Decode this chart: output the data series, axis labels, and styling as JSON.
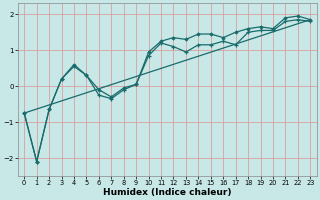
{
  "title": "",
  "xlabel": "Humidex (Indice chaleur)",
  "ylabel": "",
  "background_color": "#c8e8e8",
  "grid_color": "#d8a0a0",
  "line_color": "#1a6b6b",
  "xlim": [
    -0.5,
    23.5
  ],
  "ylim": [
    -2.5,
    2.3
  ],
  "yticks": [
    -2,
    -1,
    0,
    1,
    2
  ],
  "xticks": [
    0,
    1,
    2,
    3,
    4,
    5,
    6,
    7,
    8,
    9,
    10,
    11,
    12,
    13,
    14,
    15,
    16,
    17,
    18,
    19,
    20,
    21,
    22,
    23
  ],
  "line1_x": [
    0,
    1,
    2,
    3,
    4,
    5,
    6,
    7,
    8,
    9,
    10,
    11,
    12,
    13,
    14,
    15,
    16,
    17,
    18,
    19,
    20,
    21,
    22,
    23
  ],
  "line1_y": [
    -0.75,
    -2.1,
    -0.65,
    0.2,
    0.55,
    0.3,
    -0.25,
    -0.35,
    -0.1,
    0.05,
    0.85,
    1.2,
    1.1,
    0.95,
    1.15,
    1.15,
    1.25,
    1.15,
    1.5,
    1.55,
    1.55,
    1.8,
    1.85,
    1.8
  ],
  "line2_x": [
    0,
    1,
    2,
    3,
    4,
    5,
    6,
    7,
    8,
    9,
    10,
    11,
    12,
    13,
    14,
    15,
    16,
    17,
    18,
    19,
    20,
    21,
    22,
    23
  ],
  "line2_y": [
    -0.75,
    -2.1,
    -0.65,
    0.2,
    0.6,
    0.3,
    -0.1,
    -0.3,
    -0.05,
    0.05,
    0.95,
    1.25,
    1.35,
    1.3,
    1.45,
    1.45,
    1.35,
    1.5,
    1.6,
    1.65,
    1.6,
    1.9,
    1.95,
    1.85
  ],
  "line3_x": [
    0,
    23
  ],
  "line3_y": [
    -0.75,
    1.85
  ]
}
